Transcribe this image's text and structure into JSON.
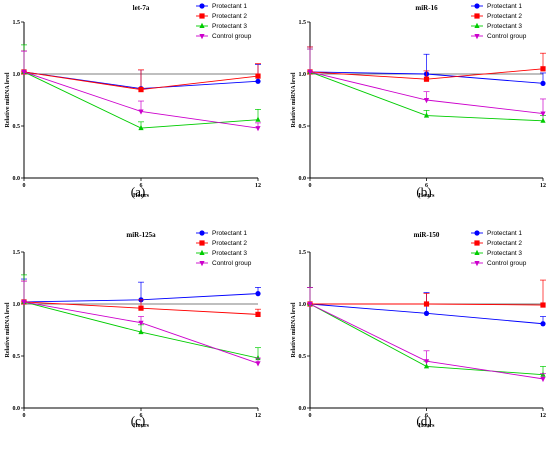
{
  "styles": {
    "series_colors": [
      "#0000ff",
      "#ff0000",
      "#00cc00",
      "#cc00cc"
    ],
    "markers": [
      "circle",
      "square",
      "triangle-up",
      "triangle-down"
    ]
  },
  "chart_data": [
    {
      "type": "line",
      "panel_label": "(a)",
      "title": "let-7a",
      "xlabel": "Hours",
      "ylabel": "Relative miRNA level",
      "x": [
        0,
        6,
        12
      ],
      "xticks": [
        "0",
        "6",
        "12"
      ],
      "yticks": [
        "0.0",
        "0.5",
        "1.0",
        "1.5"
      ],
      "xlim": [
        0,
        12
      ],
      "ylim": [
        0,
        1.5
      ],
      "reference_line": 1.0,
      "legend_position": "top-right",
      "series": [
        {
          "name": "Protectant 1",
          "values": [
            1.02,
            0.86,
            0.93
          ],
          "err": [
            0.2,
            0.18,
            0.16
          ]
        },
        {
          "name": "Protectant 2",
          "values": [
            1.02,
            0.85,
            0.98
          ],
          "err": [
            0.2,
            0.19,
            0.12
          ]
        },
        {
          "name": "Protectant 3",
          "values": [
            1.02,
            0.48,
            0.56
          ],
          "err": [
            0.26,
            0.06,
            0.1
          ]
        },
        {
          "name": "Control group",
          "values": [
            1.02,
            0.64,
            0.48
          ],
          "err": [
            0.2,
            0.1,
            0.05
          ]
        }
      ]
    },
    {
      "type": "line",
      "panel_label": "(b)",
      "title": "miR-16",
      "xlabel": "Hours",
      "ylabel": "Relative miRNA level",
      "x": [
        0,
        6,
        12
      ],
      "xticks": [
        "0",
        "6",
        "12"
      ],
      "yticks": [
        "0.0",
        "0.5",
        "1.0",
        "1.5"
      ],
      "xlim": [
        0,
        12
      ],
      "ylim": [
        0,
        1.5
      ],
      "reference_line": 1.0,
      "legend_position": "top-right",
      "series": [
        {
          "name": "Protectant 1",
          "values": [
            1.02,
            1.0,
            0.91
          ],
          "err": [
            0.24,
            0.19,
            0.1
          ]
        },
        {
          "name": "Protectant 2",
          "values": [
            1.02,
            0.95,
            1.05
          ],
          "err": [
            0.24,
            0.08,
            0.15
          ]
        },
        {
          "name": "Protectant 3",
          "values": [
            1.02,
            0.6,
            0.55
          ],
          "err": [
            0.22,
            0.05,
            0.05
          ]
        },
        {
          "name": "Control group",
          "values": [
            1.02,
            0.75,
            0.62
          ],
          "err": [
            0.22,
            0.08,
            0.14
          ]
        }
      ]
    },
    {
      "type": "line",
      "panel_label": "(c)",
      "title": "miR-125a",
      "xlabel": "Hours",
      "ylabel": "Relative miRNA level",
      "x": [
        0,
        6,
        12
      ],
      "xticks": [
        "0",
        "6",
        "12"
      ],
      "yticks": [
        "0.0",
        "0.5",
        "1.0",
        "1.5"
      ],
      "xlim": [
        0,
        12
      ],
      "ylim": [
        0,
        1.5
      ],
      "reference_line": 1.0,
      "legend_position": "top-right",
      "series": [
        {
          "name": "Protectant 1",
          "values": [
            1.02,
            1.04,
            1.1
          ],
          "err": [
            0.22,
            0.17,
            0.06
          ]
        },
        {
          "name": "Protectant 2",
          "values": [
            1.02,
            0.96,
            0.9
          ],
          "err": [
            0.2,
            0.08,
            0.05
          ]
        },
        {
          "name": "Protectant 3",
          "values": [
            1.02,
            0.73,
            0.48
          ],
          "err": [
            0.26,
            0.07,
            0.1
          ]
        },
        {
          "name": "Control group",
          "values": [
            1.02,
            0.82,
            0.43
          ],
          "err": [
            0.2,
            0.06,
            0.05
          ]
        }
      ]
    },
    {
      "type": "line",
      "panel_label": "(d)",
      "title": "miR-150",
      "xlabel": "Hours",
      "ylabel": "Relative miRNA level",
      "x": [
        0,
        6,
        12
      ],
      "xticks": [
        "0",
        "6",
        "12"
      ],
      "yticks": [
        "0.0",
        "0.5",
        "1.0",
        "1.5"
      ],
      "xlim": [
        0,
        12
      ],
      "ylim": [
        0,
        1.5
      ],
      "reference_line": 1.0,
      "legend_position": "top-right",
      "series": [
        {
          "name": "Protectant 1",
          "values": [
            1.0,
            0.91,
            0.81
          ],
          "err": [
            0.16,
            0.2,
            0.07
          ]
        },
        {
          "name": "Protectant 2",
          "values": [
            1.0,
            1.0,
            0.99
          ],
          "err": [
            0.16,
            0.1,
            0.24
          ]
        },
        {
          "name": "Protectant 3",
          "values": [
            1.0,
            0.4,
            0.32
          ],
          "err": [
            0.16,
            0.05,
            0.08
          ]
        },
        {
          "name": "Control group",
          "values": [
            1.0,
            0.45,
            0.28
          ],
          "err": [
            0.16,
            0.1,
            0.05
          ]
        }
      ]
    }
  ]
}
